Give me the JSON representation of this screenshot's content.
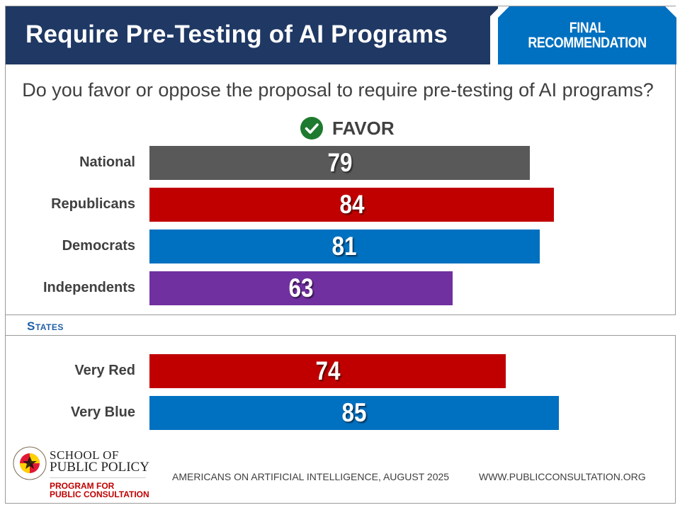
{
  "header": {
    "title": "Require Pre-Testing of AI Programs",
    "badge_line1": "FINAL",
    "badge_line2": "RECOMMENDATION"
  },
  "question": "Do you favor or oppose the proposal to require pre-testing of AI programs?",
  "favor_label": "FAVOR",
  "section_label": "States",
  "colors": {
    "banner": "#1f3864",
    "badge": "#0070c0",
    "favor_check": "#1e7a2e"
  },
  "chart_data": [
    {
      "type": "bar",
      "orientation": "horizontal",
      "categories": [
        "National",
        "Republicans",
        "Democrats",
        "Independents"
      ],
      "values": [
        79,
        84,
        81,
        63
      ],
      "colors": [
        "#595959",
        "#c00000",
        "#0070c0",
        "#7030a0"
      ],
      "series": [
        {
          "name": "FAVOR",
          "values": [
            79,
            84,
            81,
            63
          ]
        }
      ]
    },
    {
      "type": "bar",
      "orientation": "horizontal",
      "categories": [
        "Very Red",
        "Very Blue"
      ],
      "values": [
        74,
        85
      ],
      "colors": [
        "#c00000",
        "#0070c0"
      ],
      "series": [
        {
          "name": "FAVOR",
          "values": [
            74,
            85
          ]
        }
      ]
    }
  ],
  "footer": {
    "school_line1": "SCHOOL OF",
    "school_line2": "PUBLIC POLICY",
    "program_line1": "PROGRAM FOR",
    "program_line2": "PUBLIC CONSULTATION",
    "logo_text": "UNIVERSITY OF MARYLAND",
    "source": "AMERICANS ON ARTIFICIAL INTELLIGENCE, AUGUST 2025",
    "website": "WWW.PUBLICCONSULTATION.ORG"
  }
}
